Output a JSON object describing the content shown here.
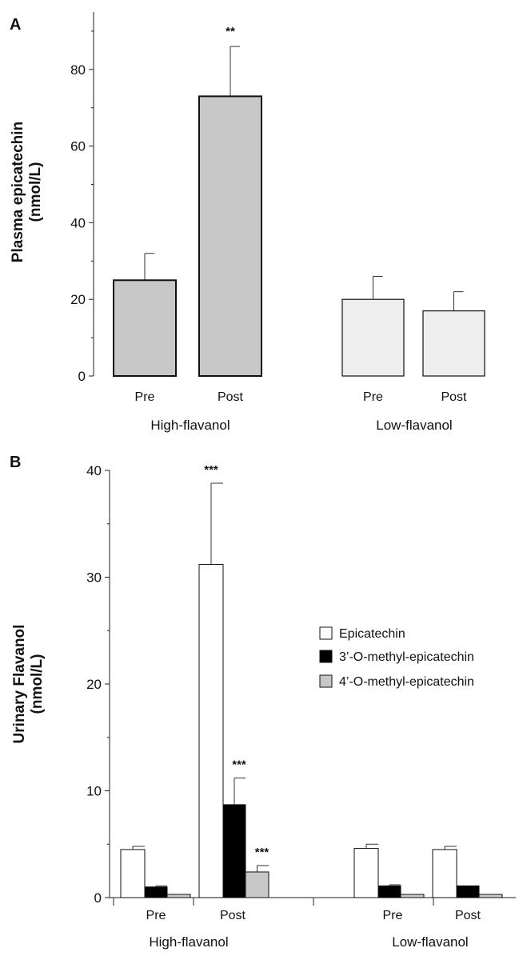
{
  "colors": {
    "high_plasma": "#c8c8c8",
    "low_plasma": "#eeeeee",
    "epicatechin": "#ffffff",
    "m3": "#000000",
    "m4": "#c8c8c8"
  },
  "chart_data": [
    {
      "type": "bar",
      "panel": "A",
      "ylabel_line1": "Plasma epicatechin",
      "ylabel_line2": "(nmol/L)",
      "ylim": [
        0,
        95
      ],
      "yticks": [
        0,
        20,
        40,
        60,
        80
      ],
      "groups": [
        "High-flavanol",
        "Low-flavanol"
      ],
      "categories": [
        "Pre",
        "Post",
        "Pre",
        "Post"
      ],
      "values": [
        25,
        73,
        20,
        17
      ],
      "errors": [
        7,
        13,
        6,
        5
      ],
      "annotations": [
        "",
        "**",
        "",
        ""
      ]
    },
    {
      "type": "bar",
      "panel": "B",
      "ylabel_line1": "Urinary Flavanol",
      "ylabel_line2": "(nmol/L)",
      "ylim": [
        0,
        40
      ],
      "yticks": [
        0,
        10,
        20,
        30,
        40
      ],
      "groups": [
        "High-flavanol",
        "Low-flavanol"
      ],
      "categories": [
        "Pre",
        "Post",
        "Pre",
        "Post"
      ],
      "series": [
        {
          "name": "Epicatechin",
          "values": [
            4.5,
            31.2,
            4.6,
            4.5
          ],
          "errors": [
            0.3,
            7.6,
            0.4,
            0.3
          ],
          "annotations": [
            "",
            "***",
            "",
            ""
          ]
        },
        {
          "name": "3’-O-methyl-epicatechin",
          "values": [
            1.0,
            8.7,
            1.1,
            1.1
          ],
          "errors": [
            0.1,
            2.5,
            0.1,
            0.0
          ],
          "annotations": [
            "",
            "***",
            "",
            ""
          ]
        },
        {
          "name": "4’-O-methyl-epicatechin",
          "values": [
            0.3,
            2.4,
            0.3,
            0.3
          ],
          "errors": [
            0.0,
            0.6,
            0.0,
            0.0
          ],
          "annotations": [
            "",
            "***",
            "",
            ""
          ]
        }
      ],
      "legend_position": "right"
    }
  ]
}
